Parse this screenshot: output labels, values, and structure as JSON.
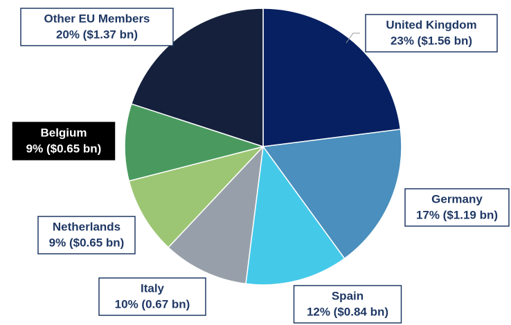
{
  "chart_data": {
    "type": "pie",
    "categories": [
      "United Kingdom",
      "Germany",
      "Spain",
      "Italy",
      "Netherlands",
      "Belgium",
      "Other EU Members"
    ],
    "values": [
      23,
      17,
      12,
      10,
      9,
      9,
      20
    ],
    "value_labels": [
      "23% ($1.56 bn)",
      "17% ($1.19 bn)",
      "12% ($0.84 bn)",
      "10% (0.67 bn)",
      "9% ($0.65 bn)",
      "9% ($0.65 bn)",
      "20% ($1.37 bn)"
    ],
    "colors": [
      "#062062",
      "#4a8fbd",
      "#45c9e9",
      "#97a0aa",
      "#9dc674",
      "#4a9a5f",
      "#14203c"
    ]
  }
}
